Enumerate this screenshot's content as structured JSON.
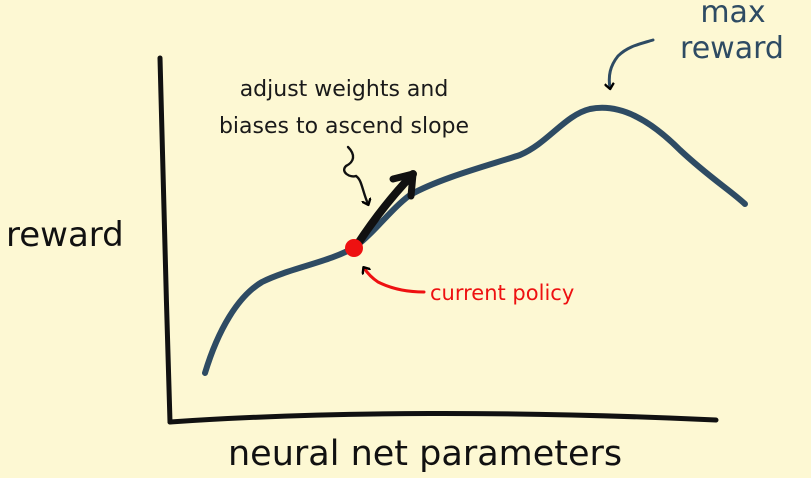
{
  "colors": {
    "background": "#fdf8d3",
    "curve": "#2e4b63",
    "axis": "#111111",
    "arrow": "#111111",
    "policy": "#ee1111",
    "annotation_text": "#1a1a1a",
    "max_reward_text": "#2e4b63"
  },
  "labels": {
    "y_axis": "reward",
    "x_axis": "neural net parameters",
    "max_reward_line1": "max",
    "max_reward_line2": "reward",
    "adjust_line1": "adjust weights and",
    "adjust_line2": "biases to ascend slope",
    "current_policy": "current policy"
  }
}
